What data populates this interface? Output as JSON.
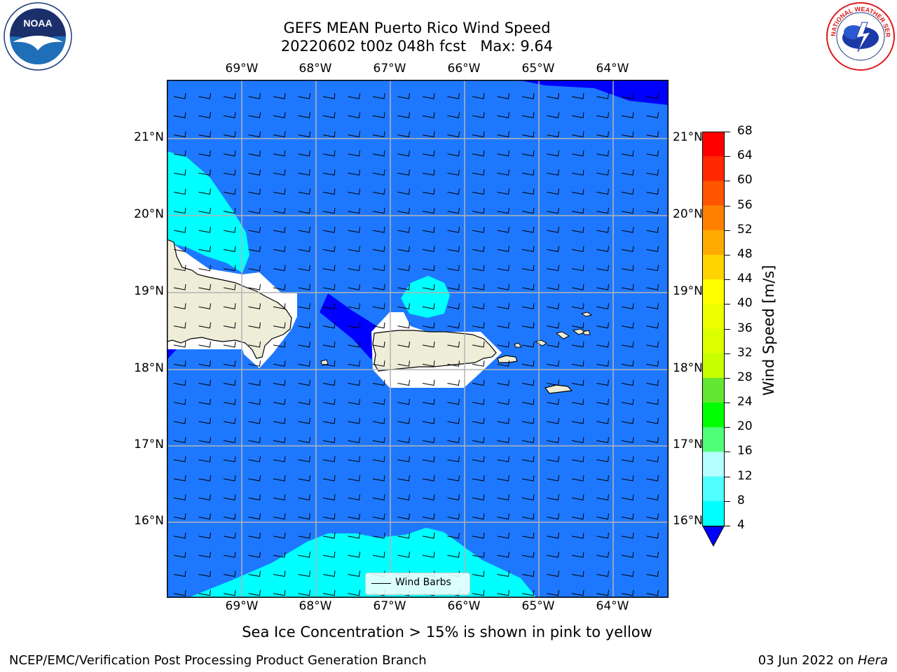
{
  "header": {
    "title_line1": "GEFS MEAN Puerto Rico Wind Speed",
    "title_line2": "20220602 t00z 048h fcst   Max: 9.64"
  },
  "logos": {
    "left": {
      "name": "NOAA",
      "ring_text": "NATIONAL OCEANIC AND ATMOSPHERIC ADMINISTRATION · U.S. DEPARTMENT OF COMMERCE"
    },
    "right": {
      "ring_text": "NATIONAL WEATHER SERVICE"
    }
  },
  "map": {
    "lon_labels": [
      "69°W",
      "68°W",
      "67°W",
      "66°W",
      "65°W",
      "64°W"
    ],
    "lat_labels": [
      "21°N",
      "20°N",
      "19°N",
      "18°N",
      "17°N",
      "16°N"
    ],
    "legend_label": "Wind Barbs"
  },
  "colorbar": {
    "label": "Wind Speed [m/s]",
    "ticks": [
      "68",
      "64",
      "60",
      "56",
      "52",
      "48",
      "44",
      "40",
      "36",
      "32",
      "28",
      "24",
      "20",
      "16",
      "12",
      "8",
      "4"
    ],
    "colors": [
      "#ff0000",
      "#ff2800",
      "#ff5500",
      "#ff8000",
      "#ffaa00",
      "#ffd400",
      "#ffff00",
      "#eeff00",
      "#dcff00",
      "#c8ff00",
      "#64e632",
      "#00ff00",
      "#50ff78",
      "#b4ffff",
      "#50ffff",
      "#00ffff",
      "#1e78ff"
    ],
    "under_color": "#0000ff"
  },
  "field_colors": {
    "bg": "#1e78ff",
    "calm": "#0000ff",
    "cyan": "#00ffff",
    "land": "#eeedd8",
    "nodata": "#ffffff"
  },
  "notes": {
    "sea_ice": "Sea Ice Concentration > 15% is shown in pink to yellow"
  },
  "footer": {
    "left": "NCEP/EMC/Verification Post Processing Product Generation Branch",
    "date": "03 Jun 2022 on ",
    "machine": "Hera"
  }
}
